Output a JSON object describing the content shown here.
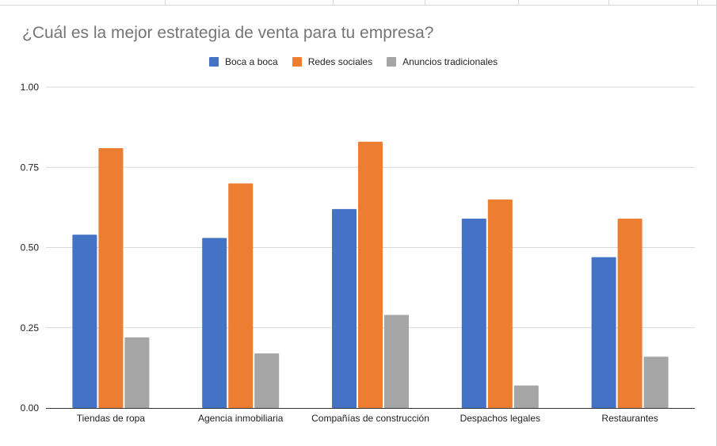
{
  "chart_data": {
    "type": "bar",
    "title": "¿Cuál es la mejor estrategia de venta para tu empresa?",
    "xlabel": "",
    "ylabel": "",
    "ylim": [
      0,
      1
    ],
    "yticks": [
      "0.00",
      "0.25",
      "0.50",
      "0.75",
      "1.00"
    ],
    "ytick_values": [
      0,
      0.25,
      0.5,
      0.75,
      1.0
    ],
    "grid": true,
    "legend_position": "top",
    "categories": [
      "Tiendas de ropa",
      "Agencia inmobiliaria",
      "Compañías de construcción",
      "Despachos legales",
      "Restaurantes"
    ],
    "series": [
      {
        "name": "Boca a boca",
        "color": "#4472c4",
        "values": [
          0.54,
          0.53,
          0.62,
          0.59,
          0.47
        ]
      },
      {
        "name": "Redes sociales",
        "color": "#ed7d31",
        "values": [
          0.81,
          0.7,
          0.83,
          0.65,
          0.59
        ]
      },
      {
        "name": "Anuncios tradicionales",
        "color": "#a5a5a5",
        "values": [
          0.22,
          0.17,
          0.29,
          0.07,
          0.16
        ]
      }
    ]
  }
}
